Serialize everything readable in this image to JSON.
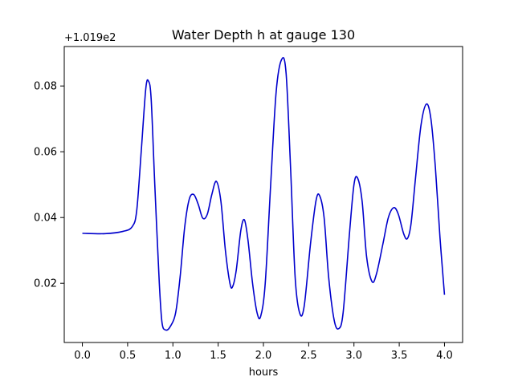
{
  "chart_data": {
    "type": "line",
    "title": "Water Depth h at gauge 130",
    "xlabel": "hours",
    "ylabel": "",
    "offset_text": "+1.019e2",
    "xlim": [
      -0.2,
      4.2
    ],
    "ylim": [
      0.002,
      0.092
    ],
    "xticks": [
      0.0,
      0.5,
      1.0,
      1.5,
      2.0,
      2.5,
      3.0,
      3.5,
      4.0
    ],
    "xtick_labels": [
      "0.0",
      "0.5",
      "1.0",
      "1.5",
      "2.0",
      "2.5",
      "3.0",
      "3.5",
      "4.0"
    ],
    "yticks": [
      0.02,
      0.04,
      0.06,
      0.08
    ],
    "ytick_labels": [
      "0.02",
      "0.04",
      "0.06",
      "0.08"
    ],
    "grid": false,
    "legend": "none",
    "series": [
      {
        "color": "#0000cc",
        "points": [
          [
            0.0,
            0.0352
          ],
          [
            0.25,
            0.0351
          ],
          [
            0.45,
            0.0358
          ],
          [
            0.55,
            0.0372
          ],
          [
            0.6,
            0.042
          ],
          [
            0.65,
            0.06
          ],
          [
            0.7,
            0.079
          ],
          [
            0.73,
            0.0815
          ],
          [
            0.76,
            0.076
          ],
          [
            0.8,
            0.05
          ],
          [
            0.85,
            0.02
          ],
          [
            0.88,
            0.008
          ],
          [
            0.92,
            0.0058
          ],
          [
            0.97,
            0.0068
          ],
          [
            1.03,
            0.011
          ],
          [
            1.08,
            0.022
          ],
          [
            1.13,
            0.037
          ],
          [
            1.18,
            0.0455
          ],
          [
            1.23,
            0.047
          ],
          [
            1.28,
            0.044
          ],
          [
            1.33,
            0.0398
          ],
          [
            1.38,
            0.041
          ],
          [
            1.43,
            0.047
          ],
          [
            1.48,
            0.051
          ],
          [
            1.53,
            0.045
          ],
          [
            1.58,
            0.03
          ],
          [
            1.63,
            0.02
          ],
          [
            1.66,
            0.019
          ],
          [
            1.7,
            0.024
          ],
          [
            1.75,
            0.036
          ],
          [
            1.79,
            0.0393
          ],
          [
            1.83,
            0.033
          ],
          [
            1.88,
            0.02
          ],
          [
            1.93,
            0.011
          ],
          [
            1.97,
            0.01
          ],
          [
            2.02,
            0.02
          ],
          [
            2.08,
            0.05
          ],
          [
            2.14,
            0.078
          ],
          [
            2.2,
            0.088
          ],
          [
            2.25,
            0.084
          ],
          [
            2.3,
            0.055
          ],
          [
            2.35,
            0.022
          ],
          [
            2.4,
            0.011
          ],
          [
            2.45,
            0.013
          ],
          [
            2.52,
            0.032
          ],
          [
            2.58,
            0.045
          ],
          [
            2.62,
            0.0467
          ],
          [
            2.67,
            0.04
          ],
          [
            2.72,
            0.022
          ],
          [
            2.78,
            0.009
          ],
          [
            2.83,
            0.0062
          ],
          [
            2.88,
            0.011
          ],
          [
            2.95,
            0.035
          ],
          [
            3.0,
            0.05
          ],
          [
            3.04,
            0.052
          ],
          [
            3.09,
            0.045
          ],
          [
            3.14,
            0.028
          ],
          [
            3.2,
            0.0205
          ],
          [
            3.25,
            0.023
          ],
          [
            3.32,
            0.032
          ],
          [
            3.38,
            0.04
          ],
          [
            3.44,
            0.043
          ],
          [
            3.49,
            0.041
          ],
          [
            3.55,
            0.035
          ],
          [
            3.59,
            0.0336
          ],
          [
            3.63,
            0.038
          ],
          [
            3.68,
            0.052
          ],
          [
            3.74,
            0.068
          ],
          [
            3.8,
            0.0745
          ],
          [
            3.85,
            0.07
          ],
          [
            3.9,
            0.055
          ],
          [
            3.95,
            0.034
          ],
          [
            4.0,
            0.0165
          ]
        ]
      }
    ]
  }
}
